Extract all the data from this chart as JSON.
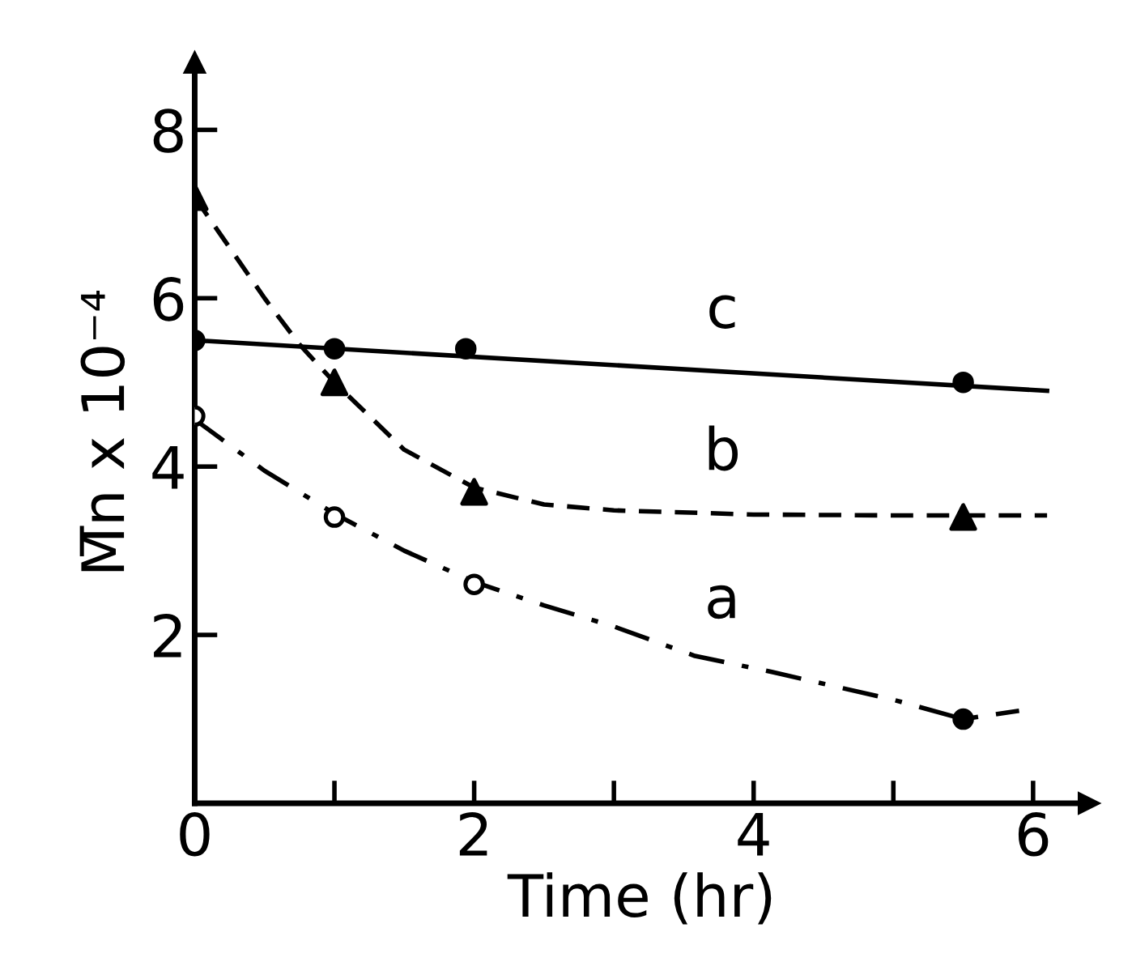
{
  "chart_data": {
    "type": "line",
    "xlabel": "Time (hr)",
    "ylabel": "M̅n x 10⁻⁴",
    "xlim": [
      0,
      6.4
    ],
    "ylim": [
      0,
      8.8
    ],
    "xticks": [
      0,
      {
        "value": 1,
        "label": null
      },
      2,
      {
        "value": 3,
        "label": null
      },
      4,
      {
        "value": 5,
        "label": null
      },
      6
    ],
    "yticks": [
      2,
      4,
      6,
      8
    ],
    "grid": false,
    "legend": false,
    "series": [
      {
        "name": "c",
        "color": "#000000",
        "line_style": "solid",
        "marker": "none",
        "x": [
          0,
          6.1
        ],
        "values": [
          5.5,
          4.9
        ]
      },
      {
        "type": "scatter",
        "color": "#000000",
        "marker": "circle",
        "x": [
          0,
          1,
          1.94,
          5.5
        ],
        "values": [
          5.5,
          5.4,
          5.4,
          5.0
        ]
      },
      {
        "name": "b",
        "color": "#000000",
        "line_style": "dashed",
        "marker": "none",
        "x": [
          0,
          0.25,
          0.5,
          0.75,
          1,
          1.5,
          2,
          2.5,
          3,
          4,
          5,
          6.1
        ],
        "values": [
          7.2,
          6.6,
          6.0,
          5.45,
          5.0,
          4.2,
          3.75,
          3.55,
          3.48,
          3.43,
          3.42,
          3.42
        ]
      },
      {
        "type": "scatter",
        "color": "#000000",
        "marker": "triangle",
        "x": [
          0,
          1,
          2,
          5.5
        ],
        "values": [
          7.2,
          5.0,
          3.7,
          3.4
        ]
      },
      {
        "name": "a",
        "color": "#000000",
        "line_style": "dashdot",
        "marker": "none",
        "x": [
          0,
          0.5,
          1,
          1.5,
          2,
          2.5,
          3,
          3.58,
          4.13,
          5,
          5.5,
          5.9
        ],
        "values": [
          4.56,
          3.95,
          3.44,
          3.0,
          2.63,
          2.35,
          2.1,
          1.75,
          1.56,
          1.23,
          1.0,
          1.1
        ]
      },
      {
        "type": "scatter",
        "color": "#000000",
        "marker": "circle_open",
        "x": [
          0,
          1,
          2
        ],
        "values": [
          4.6,
          3.4,
          2.6
        ]
      },
      {
        "type": "scatter",
        "color": "#000000",
        "marker": "circle",
        "x": [
          5.5
        ],
        "values": [
          1.0
        ]
      }
    ]
  }
}
